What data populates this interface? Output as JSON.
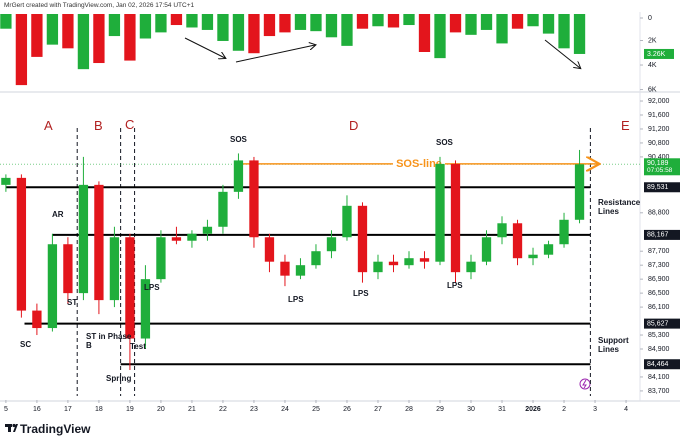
{
  "header": "MrGert created with TradingView.com, Jan 02, 2026 17:54 UTC+1",
  "footer": "TradingView",
  "chart_data": {
    "type": "candlestick",
    "x": [
      0,
      0.5,
      1,
      1.5,
      2,
      2.5,
      3,
      3.5,
      4,
      4.5,
      5,
      5.5,
      6,
      6.5,
      7,
      7.5,
      8,
      8.5,
      9,
      9.5,
      10,
      10.5,
      11,
      11.5,
      12,
      12.5,
      13,
      13.5,
      14,
      14.5,
      15,
      15.5,
      16,
      16.5,
      17,
      17.5,
      18,
      18.5
    ],
    "open": [
      89600,
      89800,
      86000,
      85500,
      87900,
      86500,
      89600,
      86300,
      88100,
      85200,
      86900,
      88100,
      88000,
      88200,
      88400,
      89400,
      90300,
      88100,
      87400,
      87000,
      87300,
      87700,
      88100,
      89000,
      87100,
      87400,
      87300,
      87500,
      87400,
      90200,
      87100,
      87400,
      88100,
      88500,
      87500,
      87600,
      87900,
      88600
    ],
    "high": [
      89900,
      89900,
      86200,
      88200,
      88100,
      90400,
      89700,
      88400,
      88200,
      87300,
      88300,
      88400,
      88300,
      88600,
      89600,
      90500,
      90400,
      88200,
      87600,
      87500,
      87900,
      88300,
      89300,
      89100,
      87600,
      87600,
      87700,
      87700,
      90400,
      90300,
      87600,
      88300,
      88700,
      88600,
      87800,
      88000,
      88800,
      90600
    ],
    "low": [
      89400,
      85800,
      85300,
      85400,
      86200,
      86300,
      85900,
      86100,
      84300,
      84900,
      86800,
      87900,
      87800,
      88000,
      88200,
      89200,
      87800,
      87100,
      86700,
      86900,
      87200,
      87500,
      88000,
      86800,
      86900,
      87100,
      87200,
      87200,
      87300,
      86800,
      86900,
      87300,
      87900,
      87300,
      87300,
      87500,
      87800,
      88500
    ],
    "close": [
      89800,
      86000,
      85500,
      87900,
      86500,
      89600,
      86300,
      88100,
      85200,
      86900,
      88100,
      88000,
      88200,
      88400,
      89400,
      90300,
      88100,
      87400,
      87000,
      87300,
      87700,
      88100,
      89000,
      87100,
      87400,
      87300,
      87500,
      87400,
      90200,
      87100,
      87400,
      88100,
      88500,
      87500,
      87600,
      87900,
      88600,
      90189
    ],
    "up_color": "#1fae3b",
    "down_color": "#e3151c",
    "xlim": [
      -0.19,
      20.45
    ],
    "xticks": [
      {
        "value": 0,
        "label": "5"
      },
      {
        "value": 1,
        "label": "16"
      },
      {
        "value": 2,
        "label": "17"
      },
      {
        "value": 3,
        "label": "18"
      },
      {
        "value": 4,
        "label": "19"
      },
      {
        "value": 5,
        "label": "20"
      },
      {
        "value": 6,
        "label": "21"
      },
      {
        "value": 7,
        "label": "22"
      },
      {
        "value": 8,
        "label": "23"
      },
      {
        "value": 9,
        "label": "24"
      },
      {
        "value": 10,
        "label": "25"
      },
      {
        "value": 11,
        "label": "26"
      },
      {
        "value": 12,
        "label": "27"
      },
      {
        "value": 13,
        "label": "28"
      },
      {
        "value": 14,
        "label": "29"
      },
      {
        "value": 15,
        "label": "30"
      },
      {
        "value": 16,
        "label": "31"
      },
      {
        "value": 17,
        "label": "2026"
      },
      {
        "value": 18,
        "label": "2"
      },
      {
        "value": 19,
        "label": "3"
      },
      {
        "value": 20,
        "label": "4"
      }
    ],
    "ylim": [
      83440,
      92230
    ],
    "yticks": [
      {
        "value": 92000,
        "label": "92,000"
      },
      {
        "value": 91600,
        "label": "91,600"
      },
      {
        "value": 91200,
        "label": "91,200"
      },
      {
        "value": 90800,
        "label": "90,800"
      },
      {
        "value": 90400,
        "label": "90,400"
      },
      {
        "value": 88800,
        "label": "88,800"
      },
      {
        "value": 87700,
        "label": "87,700"
      },
      {
        "value": 87300,
        "label": "87,300"
      },
      {
        "value": 86900,
        "label": "86,900"
      },
      {
        "value": 86500,
        "label": "86,500"
      },
      {
        "value": 86100,
        "label": "86,100"
      },
      {
        "value": 85300,
        "label": "85,300"
      },
      {
        "value": 84900,
        "label": "84,900"
      },
      {
        "value": 84100,
        "label": "84,100"
      },
      {
        "value": 83700,
        "label": "83,700"
      }
    ],
    "volume": {
      "values": [
        1200,
        5800,
        3500,
        2500,
        2800,
        4500,
        4000,
        1800,
        3800,
        2000,
        1500,
        900,
        1100,
        1300,
        2200,
        3000,
        3200,
        1800,
        1500,
        1300,
        1400,
        1900,
        2600,
        1200,
        1000,
        1100,
        900,
        3100,
        3600,
        1500,
        1700,
        1300,
        2400,
        1200,
        1000,
        1600,
        2800,
        3260
      ],
      "ylim": [
        0,
        6200
      ],
      "yticks": [
        0,
        {
          "value": 2000,
          "label": "2K"
        },
        {
          "value": 4000,
          "label": "4K"
        },
        {
          "value": 6000,
          "label": "6K"
        }
      ],
      "last": {
        "value": 3260,
        "label": "3.26K"
      }
    },
    "last_price": {
      "value": 90189,
      "label": "90,189",
      "countdown": "07:05:58"
    },
    "levels": [
      {
        "value": 89531,
        "label": "89,531",
        "start": 0
      },
      {
        "value": 88167,
        "label": "88,167",
        "start": 1.5
      },
      {
        "value": 85627,
        "label": "85,627",
        "start": 0.6
      },
      {
        "value": 84464,
        "label": "84,464",
        "start": 3.7
      }
    ],
    "sos_line": {
      "label": "SOS-line",
      "value": 90200,
      "start": 7.45,
      "color": "#f7931a"
    },
    "phase_dividers": [
      2.3,
      3.7,
      4.15,
      18.85
    ],
    "phases": [
      "A",
      "B",
      "C",
      "D",
      "E"
    ],
    "annotations": [
      "SC",
      "AR",
      "ST",
      "ST in Phase B",
      "Spring",
      "Test",
      "LPS",
      "LPS",
      "LPS",
      "LPS",
      "SOS",
      "SOS",
      "Resistance Lines",
      "Support Lines"
    ]
  }
}
